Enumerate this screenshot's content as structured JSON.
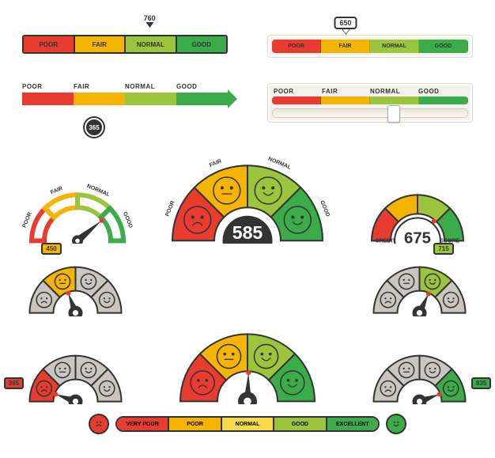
{
  "colors": {
    "poor": "#e73c2f",
    "fair": "#f4b400",
    "normal": "#9ac53c",
    "good": "#3cab4a",
    "excellent": "#2d8a3a",
    "grey": "#c8c6bf",
    "dark": "#333333",
    "needle_tip": "#e73c2f"
  },
  "bar1": {
    "segments": [
      {
        "label": "POOR",
        "color": "#e73c2f"
      },
      {
        "label": "FAIR",
        "color": "#f4b400"
      },
      {
        "label": "NORMAL",
        "color": "#9ac53c"
      },
      {
        "label": "GOOD",
        "color": "#3cab4a"
      }
    ],
    "pin_value": "760",
    "pin_pct": 62
  },
  "bar2": {
    "segments": [
      {
        "label": "POOR",
        "color": "#e73c2f"
      },
      {
        "label": "FAIR",
        "color": "#f4b400"
      },
      {
        "label": "NORMAL",
        "color": "#9ac53c"
      },
      {
        "label": "GOOD",
        "color": "#3cab4a"
      }
    ],
    "pin_value": "650",
    "pin_pct": 38
  },
  "bar3": {
    "labels": [
      "POOR",
      "FAIR",
      "NORMAL",
      "GOOD"
    ],
    "colors": [
      "#e73c2f",
      "#f4b400",
      "#9ac53c",
      "#3cab4a"
    ],
    "drop_value": "365",
    "drop_pct": 35
  },
  "bar4": {
    "labels": [
      "POOR",
      "FAIR",
      "NORMAL",
      "GOOD"
    ],
    "colors": [
      "#e73c2f",
      "#f4b400",
      "#9ac53c",
      "#3cab4a"
    ],
    "slider_pct": 62
  },
  "gauge_outline": {
    "labels": [
      "POOR",
      "FAIR",
      "NORMAL",
      "GOOD"
    ],
    "colors": [
      "#e73c2f",
      "#f4b400",
      "#9ac53c",
      "#3cab4a"
    ],
    "needle_angle": 140
  },
  "gauge_big": {
    "labels": [
      "POOR",
      "FAIR",
      "NORMAL",
      "GOOD"
    ],
    "colors": [
      "#e73c2f",
      "#f4b400",
      "#9ac53c",
      "#3cab4a"
    ],
    "faces": [
      "sad",
      "meh",
      "smile",
      "smile"
    ],
    "value": "585",
    "needle_angle": 105
  },
  "gauge_credit": {
    "labels": [
      "CREDIT",
      "SCORE"
    ],
    "colors": [
      "#e73c2f",
      "#f4b400",
      "#9ac53c",
      "#3cab4a"
    ],
    "value": "675",
    "needle_angle": 130
  },
  "gauge_g1": {
    "active": 1,
    "colors": [
      "#c8c6bf",
      "#f4b400",
      "#c8c6bf",
      "#c8c6bf"
    ],
    "needle_angle": 70,
    "tag": "450",
    "tag_color": "#f4b400",
    "tag_pos": "top-left"
  },
  "gauge_g2": {
    "active": 2,
    "colors": [
      "#c8c6bf",
      "#c8c6bf",
      "#9ac53c",
      "#c8c6bf"
    ],
    "needle_angle": 115,
    "tag": "715",
    "tag_color": "#9ac53c",
    "tag_pos": "top-right"
  },
  "gauge_g3": {
    "active": 0,
    "colors": [
      "#e73c2f",
      "#c8c6bf",
      "#c8c6bf",
      "#c8c6bf"
    ],
    "needle_angle": 20,
    "tag": "365",
    "tag_color": "#e73c2f",
    "tag_pos": "left"
  },
  "gauge_g4": {
    "active": 3,
    "colors": [
      "#c8c6bf",
      "#c8c6bf",
      "#c8c6bf",
      "#3cab4a"
    ],
    "needle_angle": 160,
    "tag": "835",
    "tag_color": "#3cab4a",
    "tag_pos": "right"
  },
  "gauge_center": {
    "colors": [
      "#e73c2f",
      "#f4b400",
      "#9ac53c",
      "#3cab4a"
    ],
    "faces": [
      "sad",
      "meh",
      "smile",
      "smile"
    ],
    "needle_angle": 92
  },
  "pill": {
    "segments": [
      {
        "label": "Very Poor",
        "color": "#e73c2f"
      },
      {
        "label": "Poor",
        "color": "#f4b400"
      },
      {
        "label": "Normal",
        "color": "#f7d94c"
      },
      {
        "label": "Good",
        "color": "#9ac53c"
      },
      {
        "label": "Excellent",
        "color": "#3cab4a"
      }
    ],
    "face_left_color": "#e73c2f",
    "face_right_color": "#3cab4a"
  }
}
